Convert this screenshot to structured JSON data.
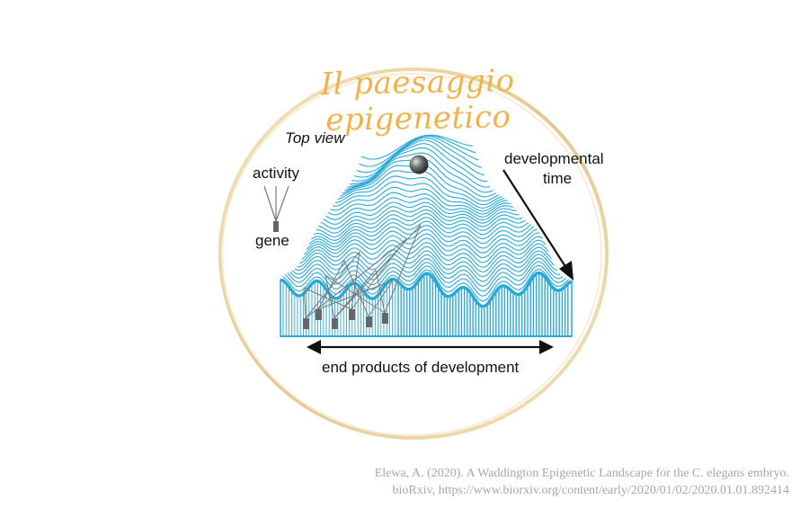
{
  "title": "Il paesaggio epigenetico",
  "labels": {
    "top_view": "Top view",
    "activity": "activity",
    "gene": "gene",
    "developmental_time_line1": "developmental",
    "developmental_time_line2": "time",
    "end_products": "end products of development"
  },
  "citation": {
    "line1": "Elewa, A. (2020). A Waddington Epigenetic Landscape for the C. elegans embryo.",
    "line2": "bioRxiv,  https://www.biorxiv.org/content/early/2020/01/02/2020.01.01.892414"
  },
  "colors": {
    "title": "#f2b24a",
    "landscape": "#29a9d8",
    "ring": "#e8c98a",
    "gene_block": "#666666",
    "ball": "#555555",
    "citation": "#a7a7a7"
  }
}
